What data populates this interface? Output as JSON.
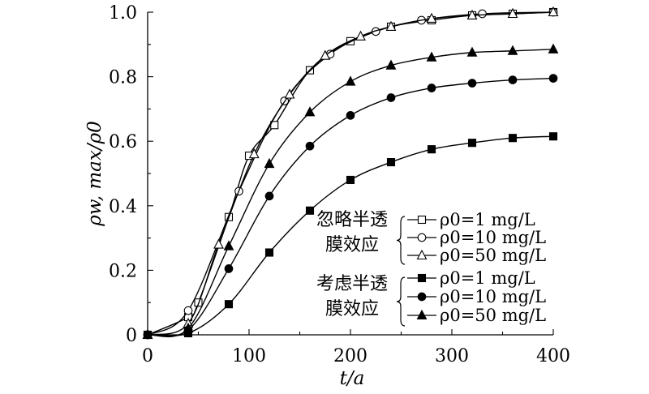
{
  "chart_data": {
    "type": "line",
    "title": "",
    "xlabel": "t/a",
    "ylabel": "ρw, max/ρ0",
    "xlim": [
      0,
      400
    ],
    "ylim": [
      0,
      1.0
    ],
    "x_ticks": [
      "0",
      "100",
      "200",
      "300",
      "400"
    ],
    "y_ticks": [
      "0",
      "0.2",
      "0.4",
      "0.6",
      "0.8",
      "1.0"
    ],
    "grid": false,
    "legend_position": "bottom-right",
    "legend_groups": [
      {
        "label_lines": [
          "忽略半透",
          "膜效应"
        ],
        "series_indices": [
          0,
          1,
          2
        ]
      },
      {
        "label_lines": [
          "考虑半透",
          "膜效应"
        ],
        "series_indices": [
          3,
          4,
          5
        ]
      }
    ],
    "series": [
      {
        "name": "ρ0=1 mg/L",
        "group": "忽略半透膜效应",
        "marker": "square-open",
        "x": [
          0,
          40,
          50,
          80,
          100,
          125,
          160,
          200,
          240,
          280,
          320,
          360,
          400
        ],
        "y": [
          0,
          0.055,
          0.1,
          0.365,
          0.555,
          0.65,
          0.82,
          0.91,
          0.955,
          0.975,
          0.99,
          0.995,
          1.0
        ]
      },
      {
        "name": "ρ0=10 mg/L",
        "group": "忽略半透膜效应",
        "marker": "circle-open",
        "x": [
          0,
          40,
          90,
          135,
          180,
          225,
          270,
          330,
          400
        ],
        "y": [
          0,
          0.075,
          0.445,
          0.725,
          0.87,
          0.94,
          0.975,
          0.995,
          1.0
        ]
      },
      {
        "name": "ρ0=50 mg/L",
        "group": "忽略半透膜效应",
        "marker": "triangle-open",
        "x": [
          0,
          40,
          70,
          105,
          140,
          175,
          210,
          240,
          280,
          320,
          360,
          400
        ],
        "y": [
          0,
          0.035,
          0.28,
          0.56,
          0.745,
          0.865,
          0.925,
          0.955,
          0.98,
          0.99,
          0.995,
          1.0
        ]
      },
      {
        "name": "ρ0=1 mg/L",
        "group": "考虑半透膜效应",
        "marker": "square-filled",
        "x": [
          0,
          40,
          80,
          120,
          160,
          200,
          240,
          280,
          320,
          360,
          400
        ],
        "y": [
          0,
          0.005,
          0.095,
          0.255,
          0.385,
          0.48,
          0.535,
          0.575,
          0.595,
          0.61,
          0.615
        ]
      },
      {
        "name": "ρ0=10 mg/L",
        "group": "考虑半透膜效应",
        "marker": "circle-filled",
        "x": [
          0,
          40,
          80,
          120,
          160,
          200,
          240,
          280,
          320,
          360,
          400
        ],
        "y": [
          0,
          0.015,
          0.205,
          0.43,
          0.585,
          0.68,
          0.735,
          0.765,
          0.78,
          0.79,
          0.795
        ]
      },
      {
        "name": "ρ0=50 mg/L",
        "group": "考虑半透膜效应",
        "marker": "triangle-filled",
        "x": [
          0,
          40,
          80,
          120,
          160,
          200,
          240,
          280,
          320,
          360,
          400
        ],
        "y": [
          0,
          0.02,
          0.275,
          0.53,
          0.69,
          0.785,
          0.835,
          0.86,
          0.875,
          0.88,
          0.885
        ]
      }
    ]
  }
}
